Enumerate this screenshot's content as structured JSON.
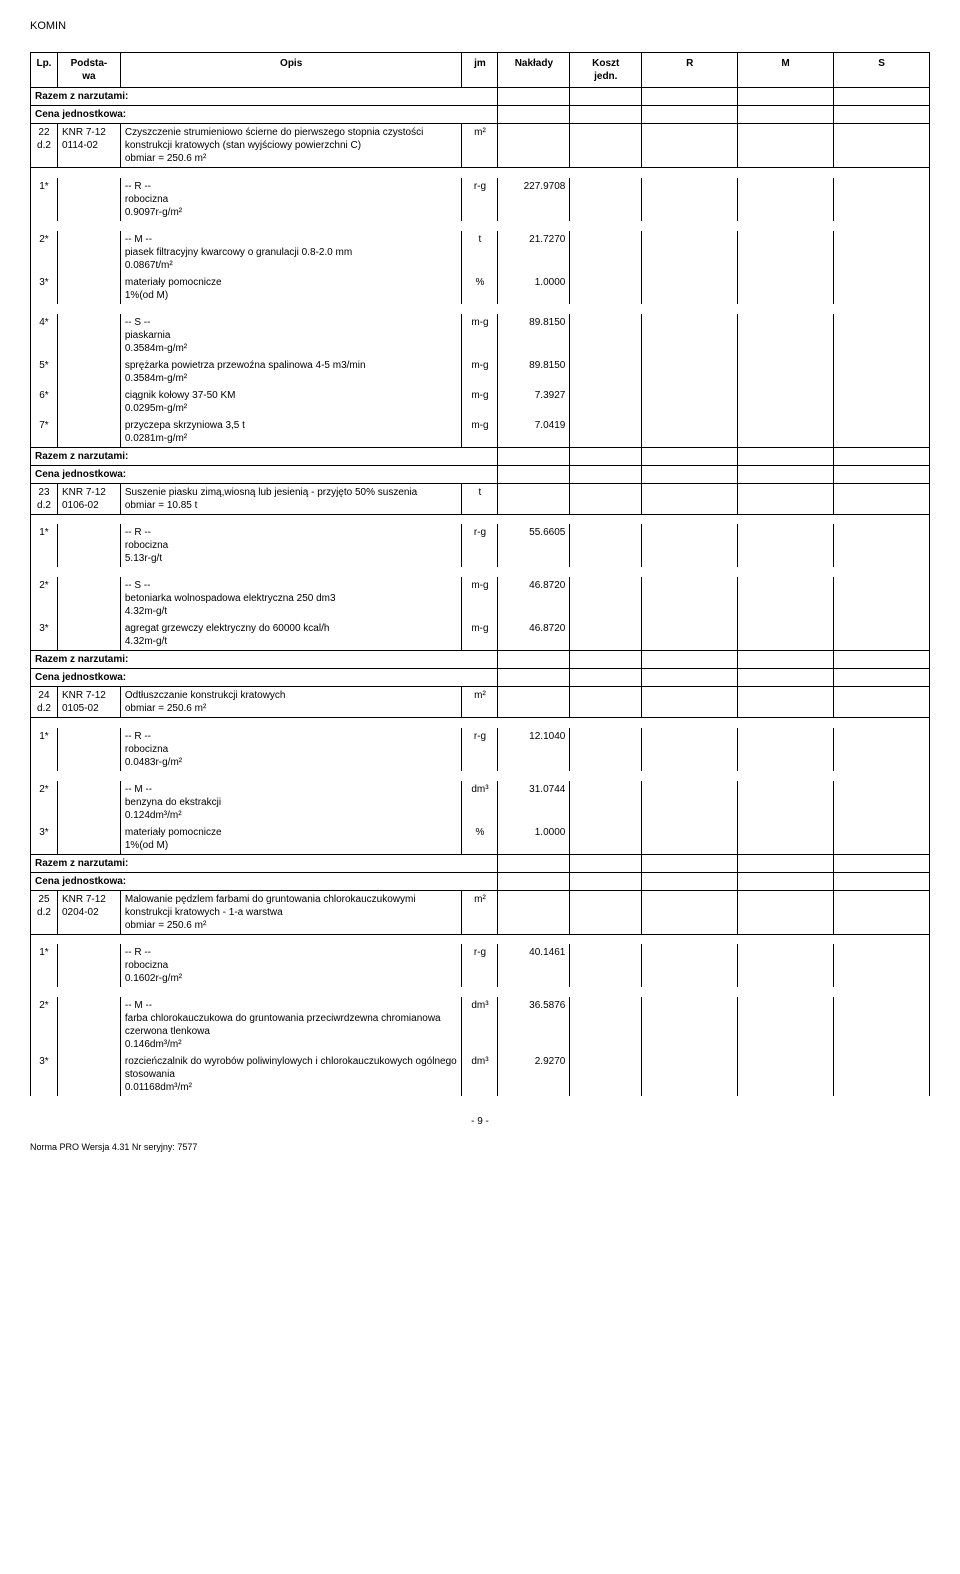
{
  "docTitle": "KOMIN",
  "pageNumber": "- 9 -",
  "footer": "Norma PRO Wersja 4.31 Nr seryjny: 7577",
  "headers": {
    "lp": "Lp.",
    "podstawa": "Podsta-\nwa",
    "opis": "Opis",
    "jm": "jm",
    "naklady": "Nakłady",
    "koszt": "Koszt\njedn.",
    "r": "R",
    "m": "M",
    "s": "S"
  },
  "labels": {
    "razem": "Razem z narzutami:",
    "cena": "Cena jednostkowa:"
  },
  "rows": [
    {
      "type": "razem"
    },
    {
      "type": "cena"
    },
    {
      "type": "item",
      "lp": "22\nd.2",
      "podst": "KNR 7-12\n0114-02",
      "opis": "Czyszczenie strumieniowo ścierne do pierwszego stopnia czystości konstrukcji kratowych (stan wyjściowy powierzchni C)\nobmiar = 250.6 m²",
      "jm": "m²"
    },
    {
      "type": "blank"
    },
    {
      "type": "detail",
      "lp": "1*",
      "opis": "-- R --\nrobocizna\n0.9097r-g/m²",
      "jm": "r-g",
      "naklady": "227.9708"
    },
    {
      "type": "blank"
    },
    {
      "type": "detail",
      "lp": "2*",
      "opis": "-- M --\npiasek filtracyjny kwarcowy o granulacji 0.8-2.0 mm\n0.0867t/m²",
      "jm": "t",
      "naklady": "21.7270"
    },
    {
      "type": "detail",
      "lp": "3*",
      "opis": "materiały pomocnicze\n1%(od M)",
      "jm": "%",
      "naklady": "1.0000"
    },
    {
      "type": "blank"
    },
    {
      "type": "detail",
      "lp": "4*",
      "opis": "-- S --\npiaskarnia\n0.3584m-g/m²",
      "jm": "m-g",
      "naklady": "89.8150"
    },
    {
      "type": "detail",
      "lp": "5*",
      "opis": "sprężarka powietrza przewoźna spalinowa 4-5 m3/min\n0.3584m-g/m²",
      "jm": "m-g",
      "naklady": "89.8150"
    },
    {
      "type": "detail",
      "lp": "6*",
      "opis": "ciągnik kołowy 37-50 KM\n0.0295m-g/m²",
      "jm": "m-g",
      "naklady": "7.3927"
    },
    {
      "type": "detail",
      "lp": "7*",
      "opis": "przyczepa skrzyniowa 3,5 t\n0.0281m-g/m²",
      "jm": "m-g",
      "naklady": "7.0419"
    },
    {
      "type": "razem"
    },
    {
      "type": "cena"
    },
    {
      "type": "item",
      "lp": "23\nd.2",
      "podst": "KNR 7-12\n0106-02",
      "opis": "Suszenie piasku zimą,wiosną lub jesienią - przyjęto 50% suszenia\nobmiar = 10.85 t",
      "jm": "t"
    },
    {
      "type": "blank"
    },
    {
      "type": "detail",
      "lp": "1*",
      "opis": "-- R --\nrobocizna\n5.13r-g/t",
      "jm": "r-g",
      "naklady": "55.6605"
    },
    {
      "type": "blank"
    },
    {
      "type": "detail",
      "lp": "2*",
      "opis": "-- S --\nbetoniarka wolnospadowa elektryczna 250 dm3\n4.32m-g/t",
      "jm": "m-g",
      "naklady": "46.8720"
    },
    {
      "type": "detail",
      "lp": "3*",
      "opis": "agregat grzewczy elektryczny do 60000 kcal/h\n4.32m-g/t",
      "jm": "m-g",
      "naklady": "46.8720"
    },
    {
      "type": "razem"
    },
    {
      "type": "cena"
    },
    {
      "type": "item",
      "lp": "24\nd.2",
      "podst": "KNR 7-12\n0105-02",
      "opis": "Odtłuszczanie konstrukcji kratowych\nobmiar = 250.6 m²",
      "jm": "m²"
    },
    {
      "type": "blank"
    },
    {
      "type": "detail",
      "lp": "1*",
      "opis": "-- R --\nrobocizna\n0.0483r-g/m²",
      "jm": "r-g",
      "naklady": "12.1040"
    },
    {
      "type": "blank"
    },
    {
      "type": "detail",
      "lp": "2*",
      "opis": "-- M --\nbenzyna do ekstrakcji\n0.124dm³/m²",
      "jm": "dm³",
      "naklady": "31.0744"
    },
    {
      "type": "detail",
      "lp": "3*",
      "opis": "materiały pomocnicze\n1%(od M)",
      "jm": "%",
      "naklady": "1.0000"
    },
    {
      "type": "razem"
    },
    {
      "type": "cena"
    },
    {
      "type": "item",
      "lp": "25\nd.2",
      "podst": "KNR 7-12\n0204-02",
      "opis": "Malowanie pędzlem farbami do gruntowania chlorokauczukowymi konstrukcji kratowych - 1-a warstwa\nobmiar = 250.6 m²",
      "jm": "m²"
    },
    {
      "type": "blank"
    },
    {
      "type": "detail",
      "lp": "1*",
      "opis": "-- R --\nrobocizna\n0.1602r-g/m²",
      "jm": "r-g",
      "naklady": "40.1461"
    },
    {
      "type": "blank"
    },
    {
      "type": "detail",
      "lp": "2*",
      "opis": "-- M --\nfarba chlorokauczukowa do gruntowania przeciwrdzewna chromianowa czerwona tlenkowa\n0.146dm³/m²",
      "jm": "dm³",
      "naklady": "36.5876"
    },
    {
      "type": "detail",
      "lp": "3*",
      "opis": "rozcieńczalnik do wyrobów poliwinylowych i chlorokauczukowych ogólnego stosowania\n0.01168dm³/m²",
      "jm": "dm³",
      "naklady": "2.9270"
    }
  ]
}
